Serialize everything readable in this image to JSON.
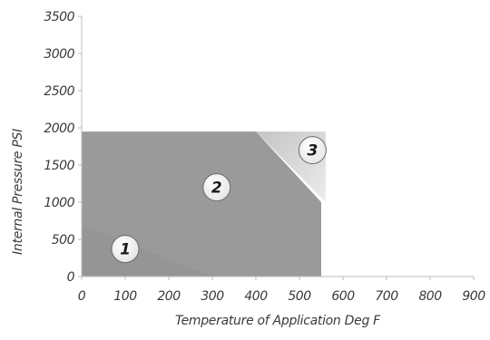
{
  "chart_data": {
    "type": "area",
    "xlabel": "Temperature of Application Deg F",
    "ylabel": "Internal Pressure PSI",
    "xlim": [
      0,
      900
    ],
    "ylim": [
      0,
      3500
    ],
    "x_ticks": [
      "0",
      "100",
      "200",
      "300",
      "400",
      "500",
      "600",
      "700",
      "800",
      "900"
    ],
    "y_ticks": [
      "0",
      "500",
      "1000",
      "1500",
      "2000",
      "2500",
      "3000",
      "3500"
    ],
    "x_tick_values": [
      0,
      100,
      200,
      300,
      400,
      500,
      600,
      700,
      800,
      900
    ],
    "y_tick_values": [
      0,
      500,
      1000,
      1500,
      2000,
      2500,
      3000,
      3500
    ],
    "regions": [
      {
        "label": "1",
        "label_at": [
          100,
          370
        ],
        "boundary": [
          [
            0,
            0
          ],
          [
            300,
            0
          ],
          [
            0,
            700
          ]
        ],
        "color": "#8c8c8c"
      },
      {
        "label": "2",
        "label_at": [
          310,
          1200
        ],
        "boundary": [
          [
            0,
            0
          ],
          [
            550,
            0
          ],
          [
            550,
            1000
          ],
          [
            400,
            1950
          ],
          [
            0,
            1950
          ]
        ],
        "color": "#9a9a9a"
      },
      {
        "label": "3",
        "label_at": [
          530,
          1700
        ],
        "boundary": [
          [
            400,
            1950
          ],
          [
            560,
            1950
          ],
          [
            560,
            1000
          ]
        ],
        "color": "#d6d6d6"
      }
    ],
    "grid": false
  }
}
